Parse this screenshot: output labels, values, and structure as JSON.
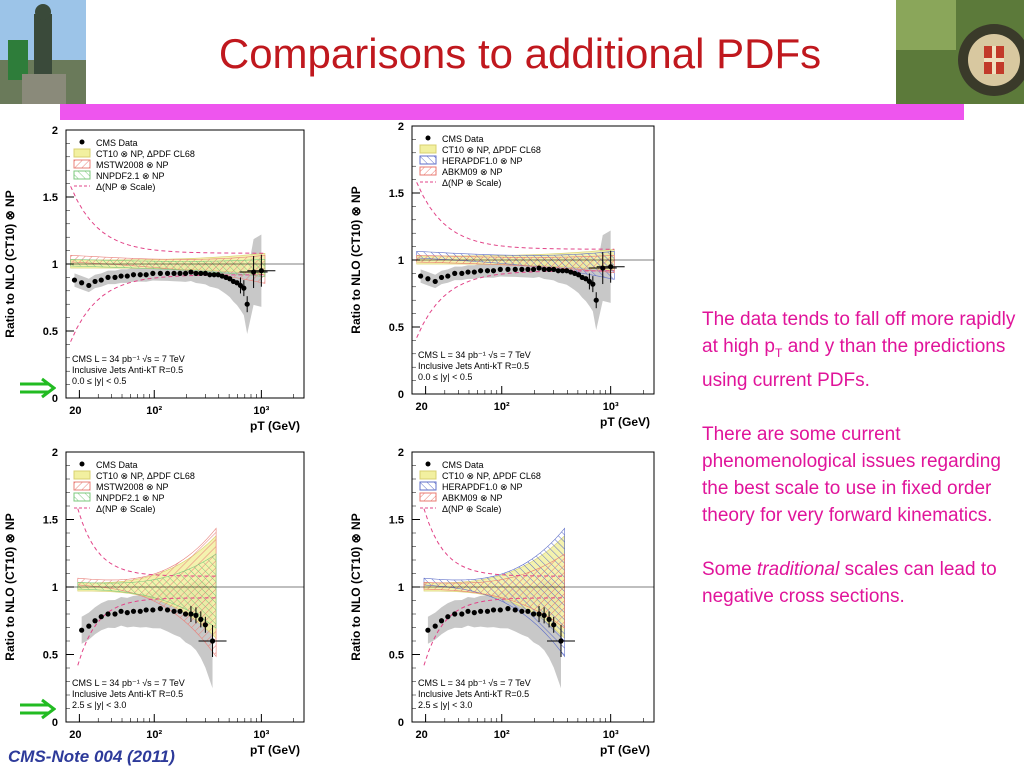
{
  "slide": {
    "title": "Comparisons to additional PDFs",
    "note": "CMS-Note 004  (2011)",
    "para1_a": "The data tends to fall off more rapidly at high p",
    "para1_sub": "T",
    "para1_b": " and y than the predictions using current PDFs.",
    "para2": "There are some current phenomenological issues regarding the best scale to use in fixed order theory for very forward kinematics.",
    "para3_a": "Some ",
    "para3_em": "traditional",
    "para3_b": " scales can lead to negative cross sections."
  },
  "colors": {
    "title": "#c0181e",
    "bar": "#ee55ee",
    "caption": "#e0149a",
    "note": "#2d3a9a",
    "ct10": "#f2f0a0",
    "mstw": "#e8807a",
    "nnpdf": "#7ec87e",
    "hera": "#5f6fc8",
    "abkm": "#e87a70",
    "np_scale": "#e24488",
    "arrow": "#22bb22"
  },
  "chart_data": [
    {
      "type": "scatter",
      "ylabel": "Ratio to NLO (CT10) ⊗ NP",
      "xlabel": "pT (GeV)",
      "ylim": [
        0,
        2
      ],
      "xlog": true,
      "xrange": [
        15,
        2500
      ],
      "xticks": [
        "20",
        "10²",
        "10³"
      ],
      "yticks": [
        "0.5",
        "1",
        "1.5"
      ],
      "legend": [
        "CMS Data",
        "CT10 ⊗ NP, ΔPDF CL68",
        "MSTW2008 ⊗ NP",
        "NNPDF2.1 ⊗ NP",
        "Δ(NP ⊕ Scale)"
      ],
      "info": [
        "CMS   L = 34 pb⁻¹   √s = 7 TeV",
        "Inclusive Jets   Anti-kT R=0.5",
        "0.0 ≤ |y| < 0.5"
      ],
      "bands": [
        "ct10",
        "mstw",
        "nnpdf"
      ],
      "x": [
        18,
        21,
        24.5,
        28,
        32,
        37,
        43,
        49,
        56,
        64,
        74,
        84,
        97,
        114,
        133,
        153,
        174,
        196,
        220,
        245,
        272,
        300,
        330,
        362,
        395,
        430,
        468,
        507,
        548,
        592,
        638,
        686,
        737,
        846,
        1000
      ],
      "y": [
        0.88,
        0.86,
        0.84,
        0.87,
        0.88,
        0.9,
        0.9,
        0.91,
        0.91,
        0.92,
        0.92,
        0.92,
        0.93,
        0.93,
        0.93,
        0.93,
        0.93,
        0.93,
        0.94,
        0.93,
        0.93,
        0.93,
        0.92,
        0.92,
        0.92,
        0.91,
        0.9,
        0.89,
        0.87,
        0.86,
        0.84,
        0.82,
        0.7,
        0.94,
        0.95
      ]
    },
    {
      "type": "scatter",
      "ylabel": "Ratio to NLO (CT10) ⊗ NP",
      "xlabel": "pT (GeV)",
      "ylim": [
        0,
        2
      ],
      "xlog": true,
      "xrange": [
        15,
        2500
      ],
      "xticks": [
        "20",
        "10²",
        "10³"
      ],
      "yticks": [
        "0.5",
        "1",
        "1.5"
      ],
      "legend": [
        "CMS Data",
        "CT10 ⊗ NP, ΔPDF CL68",
        "HERAPDF1.0 ⊗ NP",
        "ABKM09 ⊗ NP",
        "Δ(NP ⊕ Scale)"
      ],
      "info": [
        "CMS   L = 34 pb⁻¹   √s = 7 TeV",
        "Inclusive Jets   Anti-kT R=0.5",
        "0.0 ≤ |y| < 0.5"
      ],
      "bands": [
        "ct10",
        "hera",
        "abkm"
      ],
      "x": [
        18,
        21,
        24.5,
        28,
        32,
        37,
        43,
        49,
        56,
        64,
        74,
        84,
        97,
        114,
        133,
        153,
        174,
        196,
        220,
        245,
        272,
        300,
        330,
        362,
        395,
        430,
        468,
        507,
        548,
        592,
        638,
        686,
        737,
        846,
        1000
      ],
      "y": [
        0.88,
        0.86,
        0.84,
        0.87,
        0.88,
        0.9,
        0.9,
        0.91,
        0.91,
        0.92,
        0.92,
        0.92,
        0.93,
        0.93,
        0.93,
        0.93,
        0.93,
        0.93,
        0.94,
        0.93,
        0.93,
        0.93,
        0.92,
        0.92,
        0.92,
        0.91,
        0.9,
        0.89,
        0.87,
        0.86,
        0.84,
        0.82,
        0.7,
        0.94,
        0.95
      ]
    },
    {
      "type": "scatter",
      "ylabel": "Ratio to NLO (CT10) ⊗ NP",
      "xlabel": "pT (GeV)",
      "ylim": [
        0,
        2
      ],
      "xlog": true,
      "xrange": [
        15,
        2500
      ],
      "xticks": [
        "20",
        "10²",
        "10³"
      ],
      "yticks": [
        "0.5",
        "1",
        "1.5"
      ],
      "legend": [
        "CMS Data",
        "CT10 ⊗ NP, ΔPDF CL68",
        "MSTW2008 ⊗ NP",
        "NNPDF2.1 ⊗ NP",
        "Δ(NP ⊕ Scale)"
      ],
      "info": [
        "CMS   L = 34 pb⁻¹   √s = 7 TeV",
        "Inclusive Jets   Anti-kT R=0.5",
        "2.5 ≤ |y| < 3.0"
      ],
      "bands": [
        "ct10",
        "mstw",
        "nnpdf"
      ],
      "x": [
        21,
        24.5,
        28,
        32,
        37,
        43,
        49,
        56,
        64,
        74,
        84,
        97,
        114,
        133,
        153,
        174,
        196,
        220,
        245,
        272,
        300,
        350
      ],
      "y": [
        0.68,
        0.71,
        0.75,
        0.78,
        0.8,
        0.8,
        0.82,
        0.81,
        0.82,
        0.82,
        0.83,
        0.83,
        0.84,
        0.83,
        0.82,
        0.82,
        0.8,
        0.8,
        0.79,
        0.76,
        0.72,
        0.6
      ]
    },
    {
      "type": "scatter",
      "ylabel": "Ratio to NLO (CT10) ⊗ NP",
      "xlabel": "pT (GeV)",
      "ylim": [
        0,
        2
      ],
      "xlog": true,
      "xrange": [
        15,
        2500
      ],
      "xticks": [
        "20",
        "10²",
        "10³"
      ],
      "yticks": [
        "0.5",
        "1",
        "1.5"
      ],
      "legend": [
        "CMS Data",
        "CT10 ⊗ NP, ΔPDF CL68",
        "HERAPDF1.0 ⊗ NP",
        "ABKM09 ⊗ NP",
        "Δ(NP ⊕ Scale)"
      ],
      "info": [
        "CMS   L = 34 pb⁻¹   √s = 7 TeV",
        "Inclusive Jets   Anti-kT R=0.5",
        "2.5 ≤ |y| < 3.0"
      ],
      "bands": [
        "ct10",
        "hera",
        "abkm"
      ],
      "x": [
        21,
        24.5,
        28,
        32,
        37,
        43,
        49,
        56,
        64,
        74,
        84,
        97,
        114,
        133,
        153,
        174,
        196,
        220,
        245,
        272,
        300,
        350
      ],
      "y": [
        0.68,
        0.71,
        0.75,
        0.78,
        0.8,
        0.8,
        0.82,
        0.81,
        0.82,
        0.82,
        0.83,
        0.83,
        0.84,
        0.83,
        0.82,
        0.82,
        0.8,
        0.8,
        0.79,
        0.76,
        0.72,
        0.6
      ]
    }
  ]
}
